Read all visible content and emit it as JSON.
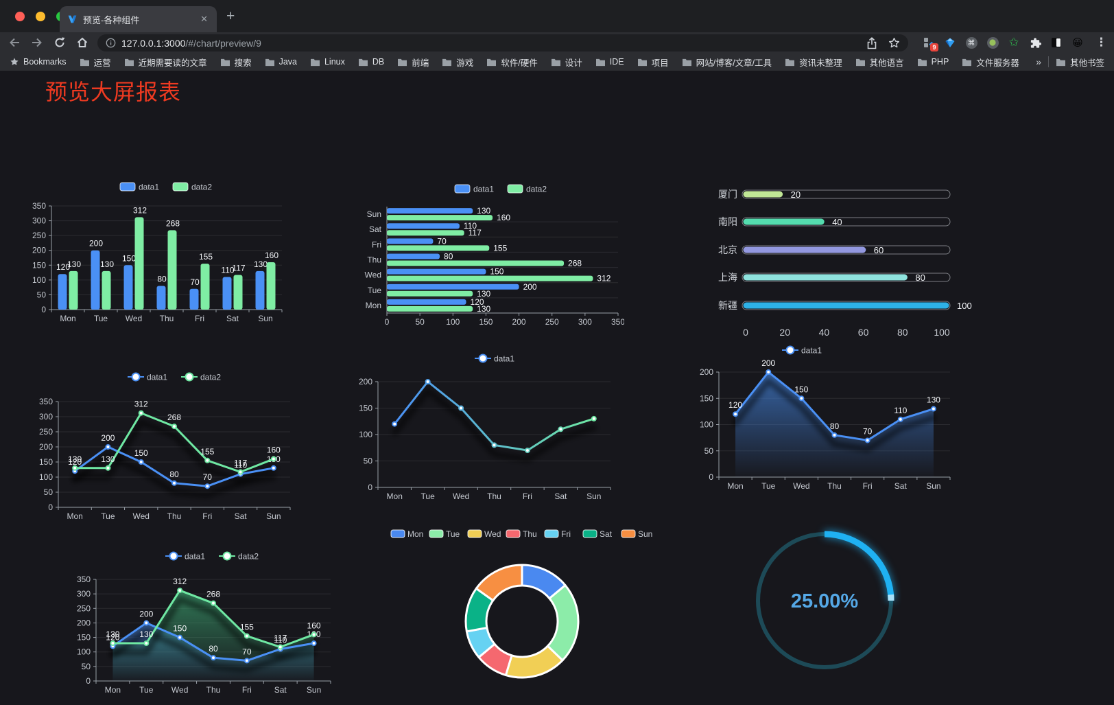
{
  "browser": {
    "tab_title": "预览-各种组件",
    "new_tab_label": "+",
    "close_label": "✕",
    "url_host": "127.0.0.1:3000",
    "url_path": "/#/chart/preview/9",
    "bookmarks_label": "Bookmarks",
    "bookmarks": [
      "运营",
      "近期需要读的文章",
      "搜索",
      "Java",
      "Linux",
      "DB",
      "前端",
      "游戏",
      "软件/硬件",
      "设计",
      "IDE",
      "项目",
      "网站/博客/文章/工具",
      "资讯未整理",
      "其他语言",
      "PHP",
      "文件服务器"
    ],
    "bookmarks_overflow": "»",
    "other_bookmarks": "其他书签",
    "extension_badge": "9",
    "emoji_extension": "😀",
    "kebab": "⋮"
  },
  "page": {
    "title": "预览大屏报表",
    "title_color": "#ee3a21",
    "background": "#17171c"
  },
  "chart_data": [
    {
      "id": "bar-grouped",
      "type": "bar",
      "categories": [
        "Mon",
        "Tue",
        "Wed",
        "Thu",
        "Fri",
        "Sat",
        "Sun"
      ],
      "series": [
        {
          "name": "data1",
          "color": "#4a90f5",
          "values": [
            120,
            200,
            150,
            80,
            70,
            110,
            130
          ]
        },
        {
          "name": "data2",
          "color": "#7feda4",
          "values": [
            130,
            130,
            312,
            268,
            155,
            117,
            160
          ]
        }
      ],
      "ylim": [
        0,
        350
      ],
      "ytick_step": 50,
      "value_labels": true,
      "legend_position": "top"
    },
    {
      "id": "hbar-grouped",
      "type": "hbar",
      "categories": [
        "Mon",
        "Tue",
        "Wed",
        "Thu",
        "Fri",
        "Sat",
        "Sun"
      ],
      "display_order_top_to_bottom": [
        "Sun",
        "Sat",
        "Fri",
        "Thu",
        "Wed",
        "Tue",
        "Mon"
      ],
      "series": [
        {
          "name": "data1",
          "color": "#4a90f5",
          "values": [
            120,
            200,
            150,
            80,
            70,
            110,
            130
          ]
        },
        {
          "name": "data2",
          "color": "#7feda4",
          "values": [
            130,
            130,
            312,
            268,
            155,
            117,
            160
          ]
        }
      ],
      "xlim": [
        0,
        350
      ],
      "xtick_step": 50,
      "value_labels": true,
      "legend_position": "top"
    },
    {
      "id": "city-progress",
      "type": "progress",
      "max": 100,
      "ticks": [
        0,
        20,
        40,
        60,
        80,
        100
      ],
      "rows": [
        {
          "label": "厦门",
          "value": 20,
          "color": "#c1e796"
        },
        {
          "label": "南阳",
          "value": 40,
          "color": "#54dcae"
        },
        {
          "label": "北京",
          "value": 60,
          "color": "#9398e0"
        },
        {
          "label": "上海",
          "value": 80,
          "color": "#8fe3de"
        },
        {
          "label": "新疆",
          "value": 100,
          "color": "#2eb1e6"
        }
      ]
    },
    {
      "id": "line-two",
      "type": "line",
      "categories": [
        "Mon",
        "Tue",
        "Wed",
        "Thu",
        "Fri",
        "Sat",
        "Sun"
      ],
      "series": [
        {
          "name": "data1",
          "color": "#4a90f5",
          "values": [
            120,
            200,
            150,
            80,
            70,
            110,
            130
          ]
        },
        {
          "name": "data2",
          "color": "#6fe8a3",
          "values": [
            130,
            130,
            312,
            268,
            155,
            117,
            160
          ]
        }
      ],
      "ylim": [
        0,
        350
      ],
      "ytick_step": 50,
      "value_labels": true,
      "shadow": true,
      "legend_position": "top"
    },
    {
      "id": "line-gradient",
      "type": "line",
      "categories": [
        "Mon",
        "Tue",
        "Wed",
        "Thu",
        "Fri",
        "Sat",
        "Sun"
      ],
      "series": [
        {
          "name": "data1",
          "color": "#4a90f5",
          "color_end": "#6fe8a3",
          "values": [
            120,
            200,
            150,
            80,
            70,
            110,
            130
          ]
        }
      ],
      "ylim": [
        0,
        200
      ],
      "ytick_step": 50,
      "value_labels": false,
      "shadow": true,
      "legend_position": "top"
    },
    {
      "id": "area-single",
      "type": "line",
      "categories": [
        "Mon",
        "Tue",
        "Wed",
        "Thu",
        "Fri",
        "Sat",
        "Sun"
      ],
      "series": [
        {
          "name": "data1",
          "color": "#4a90f5",
          "area": true,
          "area_color": "#3f78c8",
          "values": [
            120,
            200,
            150,
            80,
            70,
            110,
            130
          ]
        }
      ],
      "ylim": [
        0,
        200
      ],
      "ytick_step": 50,
      "value_labels": true,
      "shadow": true,
      "legend_position": "top"
    },
    {
      "id": "line-two-area",
      "type": "line",
      "categories": [
        "Mon",
        "Tue",
        "Wed",
        "Thu",
        "Fri",
        "Sat",
        "Sun"
      ],
      "series": [
        {
          "name": "data1",
          "color": "#4a90f5",
          "area": true,
          "area_color": "#3f78c8",
          "values": [
            120,
            200,
            150,
            80,
            70,
            110,
            130
          ]
        },
        {
          "name": "data2",
          "color": "#6fe8a3",
          "area": true,
          "area_color": "#3fae77",
          "values": [
            130,
            130,
            312,
            268,
            155,
            117,
            160
          ]
        }
      ],
      "ylim": [
        0,
        350
      ],
      "ytick_step": 50,
      "value_labels": true,
      "shadow": true,
      "legend_position": "top"
    },
    {
      "id": "donut",
      "type": "pie",
      "items": [
        {
          "label": "Mon",
          "value": 120,
          "color": "#4a89f0"
        },
        {
          "label": "Tue",
          "value": 200,
          "color": "#8ceca9"
        },
        {
          "label": "Wed",
          "value": 150,
          "color": "#f1cf55"
        },
        {
          "label": "Thu",
          "value": 80,
          "color": "#f5686f"
        },
        {
          "label": "Fri",
          "value": 70,
          "color": "#66d2f2"
        },
        {
          "label": "Sat",
          "value": 110,
          "color": "#0ab287"
        },
        {
          "label": "Sun",
          "value": 130,
          "color": "#f78f42"
        }
      ],
      "start_angle": "top",
      "direction": "clockwise",
      "border_color": "#ffffff",
      "legend_position": "top"
    },
    {
      "id": "gauge",
      "type": "gauge",
      "value_text": "25.00%",
      "percent": 25,
      "track_color": "#1d4a57",
      "arc_color": "#1fb1f2",
      "arc_tip_color": "#a9e0f8",
      "text_color": "#55a8e6"
    }
  ]
}
